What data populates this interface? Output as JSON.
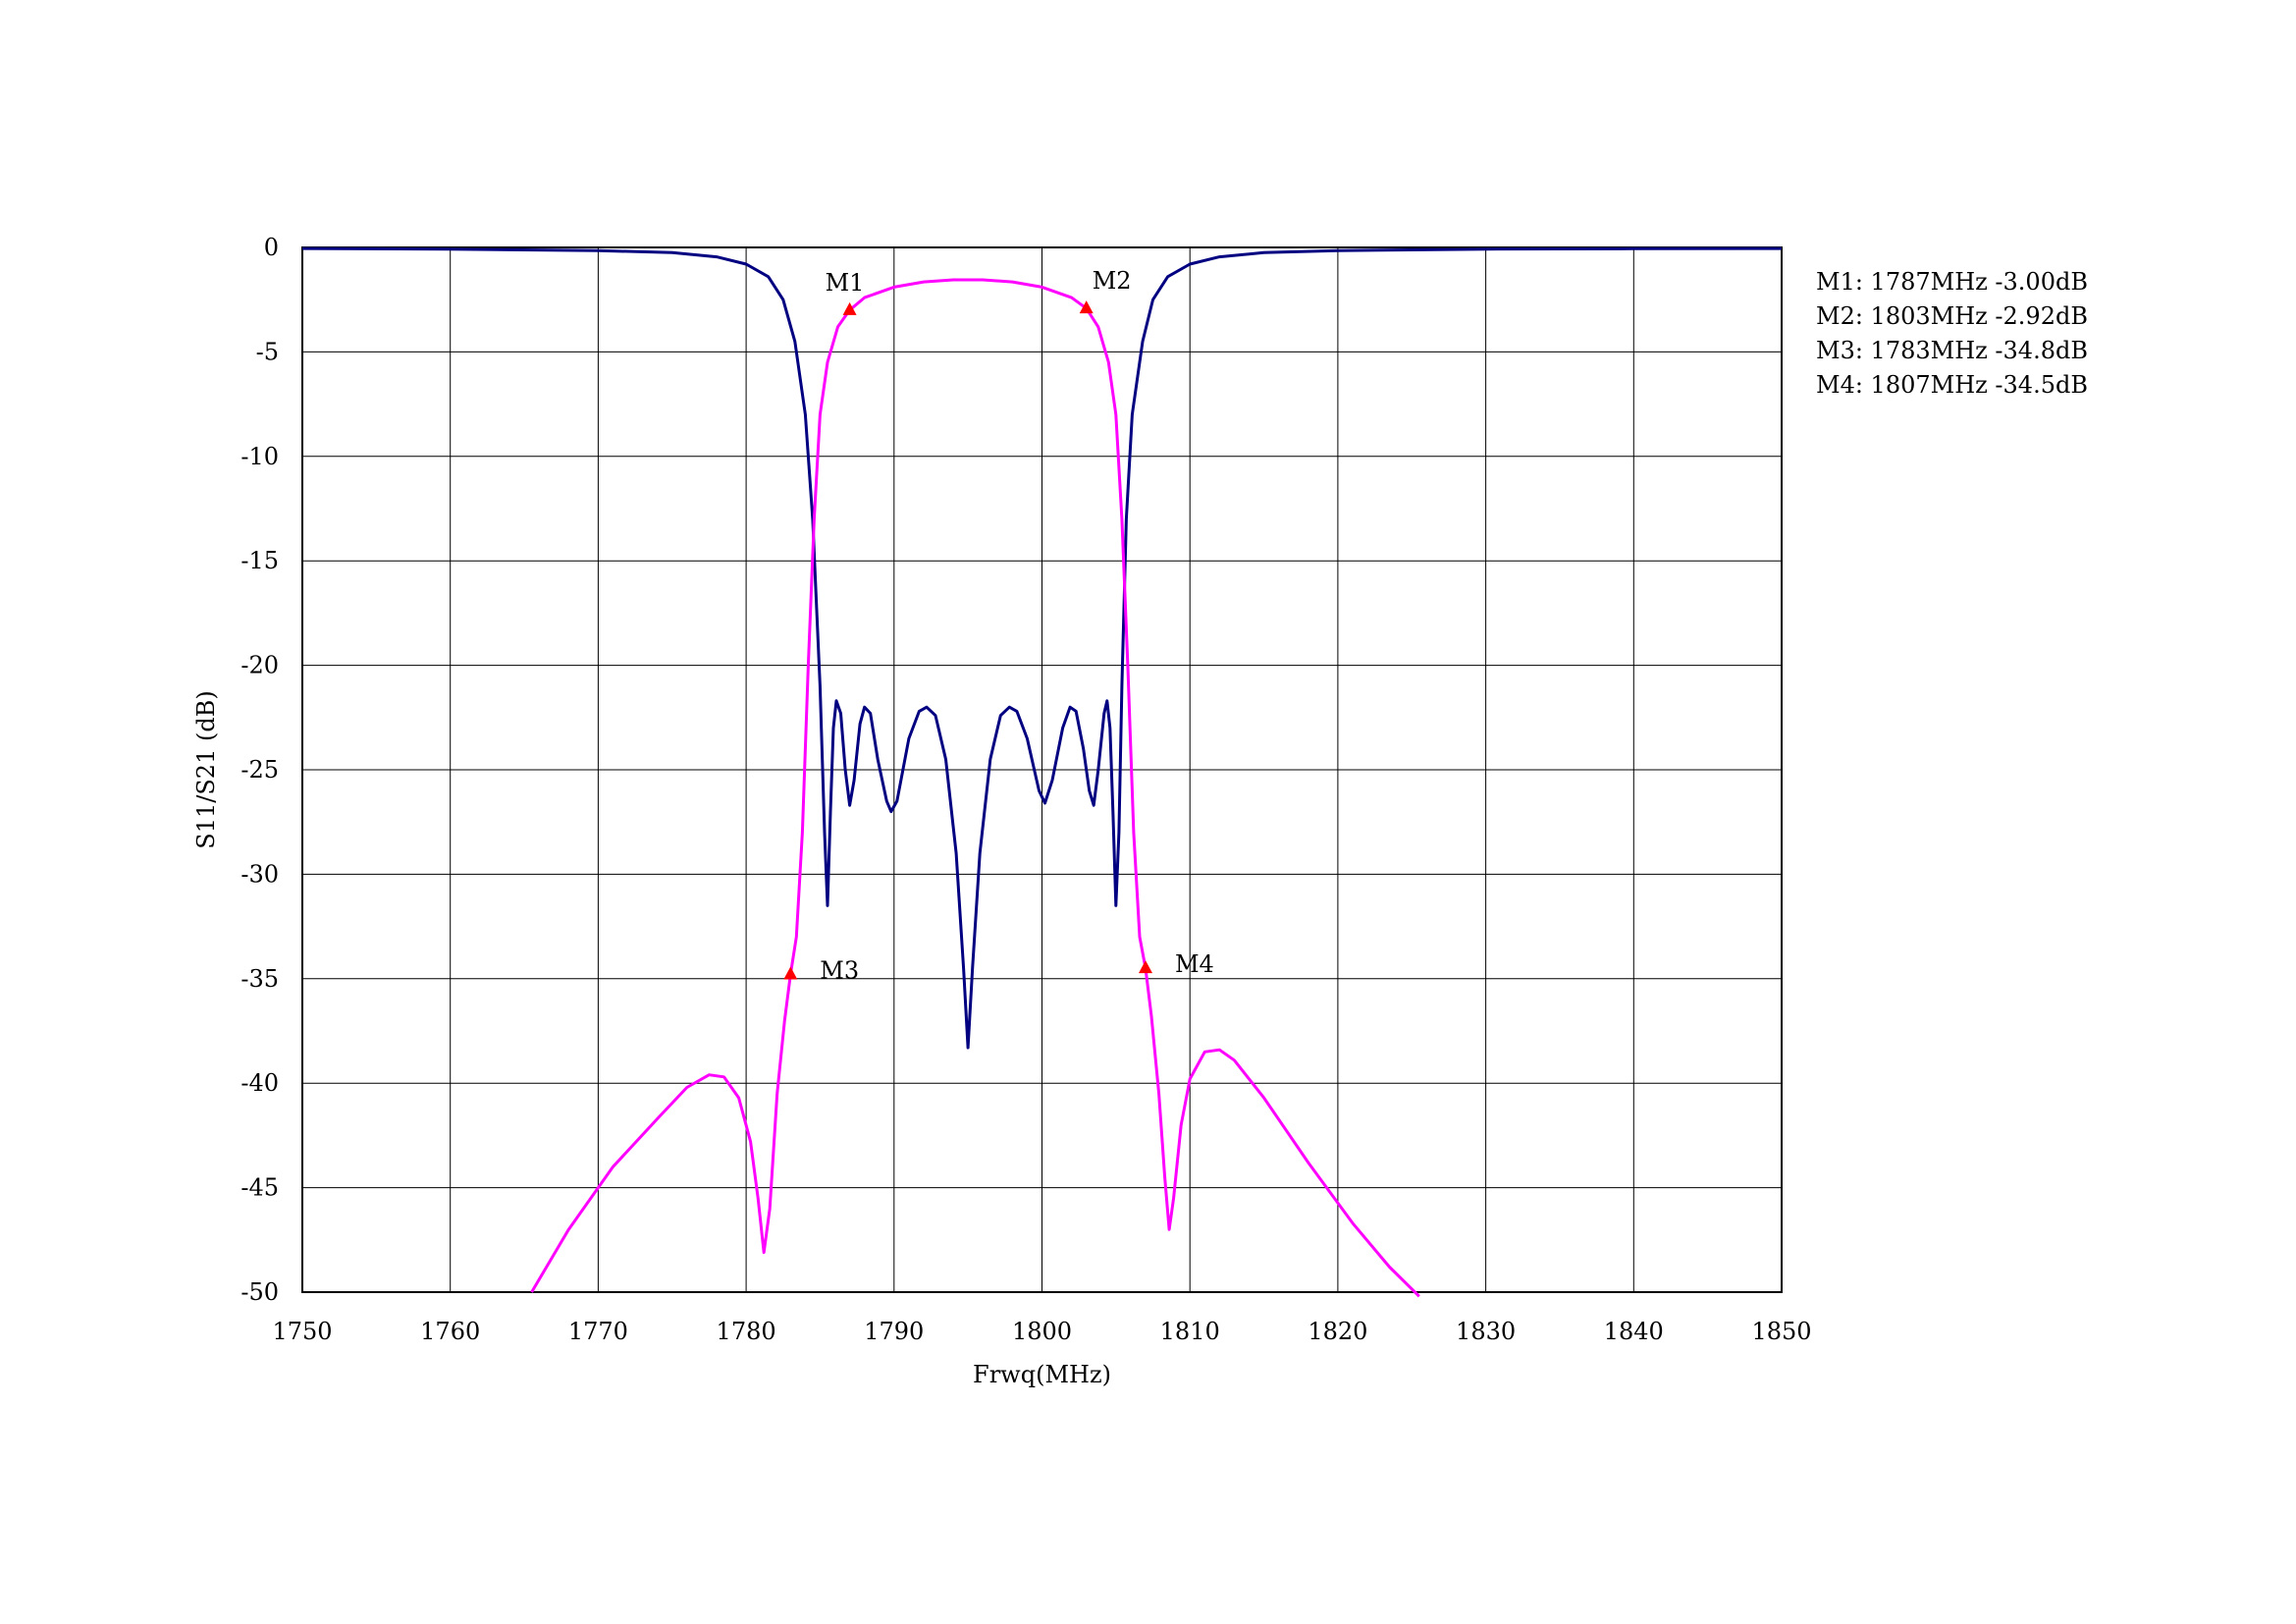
{
  "chart_data": {
    "type": "line",
    "title": "",
    "xlabel": "Frwq(MHz)",
    "ylabel": "S11/S21 (dB)",
    "xlim": [
      1750,
      1850
    ],
    "ylim": [
      -50,
      0
    ],
    "x_ticks": [
      1750,
      1760,
      1770,
      1780,
      1790,
      1800,
      1810,
      1820,
      1830,
      1840,
      1850
    ],
    "y_ticks": [
      0,
      -5,
      -10,
      -15,
      -20,
      -25,
      -30,
      -35,
      -40,
      -45,
      -50
    ],
    "grid": true,
    "series": [
      {
        "color": "#000080",
        "points": [
          [
            1750,
            -0.05
          ],
          [
            1760,
            -0.08
          ],
          [
            1770,
            -0.15
          ],
          [
            1775,
            -0.25
          ],
          [
            1778,
            -0.45
          ],
          [
            1780,
            -0.8
          ],
          [
            1781.5,
            -1.4
          ],
          [
            1782.5,
            -2.5
          ],
          [
            1783.3,
            -4.5
          ],
          [
            1784,
            -8
          ],
          [
            1784.5,
            -13
          ],
          [
            1785,
            -21
          ],
          [
            1785.3,
            -28
          ],
          [
            1785.5,
            -31.5
          ],
          [
            1785.7,
            -27
          ],
          [
            1785.9,
            -23
          ],
          [
            1786.1,
            -21.7
          ],
          [
            1786.4,
            -22.3
          ],
          [
            1786.7,
            -25
          ],
          [
            1787,
            -26.7
          ],
          [
            1787.3,
            -25.5
          ],
          [
            1787.7,
            -22.8
          ],
          [
            1788,
            -22
          ],
          [
            1788.4,
            -22.3
          ],
          [
            1788.9,
            -24.5
          ],
          [
            1789.5,
            -26.5
          ],
          [
            1789.8,
            -27
          ],
          [
            1790.2,
            -26.5
          ],
          [
            1791,
            -23.5
          ],
          [
            1791.7,
            -22.2
          ],
          [
            1792.2,
            -22
          ],
          [
            1792.8,
            -22.4
          ],
          [
            1793.5,
            -24.5
          ],
          [
            1794.2,
            -29
          ],
          [
            1794.7,
            -34.5
          ],
          [
            1795,
            -38.3
          ],
          [
            1795.3,
            -34.5
          ],
          [
            1795.8,
            -29
          ],
          [
            1796.5,
            -24.5
          ],
          [
            1797.2,
            -22.4
          ],
          [
            1797.8,
            -22
          ],
          [
            1798.3,
            -22.2
          ],
          [
            1799,
            -23.5
          ],
          [
            1799.8,
            -26
          ],
          [
            1800.2,
            -26.6
          ],
          [
            1800.7,
            -25.5
          ],
          [
            1801.4,
            -23
          ],
          [
            1801.9,
            -22
          ],
          [
            1802.3,
            -22.2
          ],
          [
            1802.8,
            -24
          ],
          [
            1803.2,
            -26
          ],
          [
            1803.5,
            -26.7
          ],
          [
            1803.8,
            -25
          ],
          [
            1804.2,
            -22.3
          ],
          [
            1804.4,
            -21.7
          ],
          [
            1804.6,
            -23
          ],
          [
            1804.8,
            -27
          ],
          [
            1805,
            -31.5
          ],
          [
            1805.2,
            -28
          ],
          [
            1805.4,
            -21
          ],
          [
            1805.7,
            -13
          ],
          [
            1806.1,
            -8
          ],
          [
            1806.8,
            -4.5
          ],
          [
            1807.5,
            -2.5
          ],
          [
            1808.5,
            -1.4
          ],
          [
            1810,
            -0.8
          ],
          [
            1812,
            -0.45
          ],
          [
            1815,
            -0.25
          ],
          [
            1820,
            -0.15
          ],
          [
            1830,
            -0.08
          ],
          [
            1840,
            -0.06
          ],
          [
            1850,
            -0.05
          ]
        ]
      },
      {
        "color": "#ff00ff",
        "points": [
          [
            1765.5,
            -50
          ],
          [
            1768,
            -47
          ],
          [
            1771,
            -44
          ],
          [
            1774,
            -41.7
          ],
          [
            1776,
            -40.2
          ],
          [
            1777.5,
            -39.6
          ],
          [
            1778.5,
            -39.7
          ],
          [
            1779.5,
            -40.7
          ],
          [
            1780.3,
            -42.8
          ],
          [
            1780.8,
            -45.5
          ],
          [
            1781.2,
            -48.1
          ],
          [
            1781.6,
            -46
          ],
          [
            1782.1,
            -40.5
          ],
          [
            1782.6,
            -37
          ],
          [
            1783,
            -34.8
          ],
          [
            1783.4,
            -33
          ],
          [
            1783.8,
            -28
          ],
          [
            1784.2,
            -20
          ],
          [
            1784.6,
            -13
          ],
          [
            1785,
            -8
          ],
          [
            1785.5,
            -5.5
          ],
          [
            1786.2,
            -3.8
          ],
          [
            1787,
            -3.0
          ],
          [
            1788,
            -2.4
          ],
          [
            1790,
            -1.9
          ],
          [
            1792,
            -1.65
          ],
          [
            1794,
            -1.55
          ],
          [
            1796,
            -1.55
          ],
          [
            1798,
            -1.65
          ],
          [
            1800,
            -1.9
          ],
          [
            1802,
            -2.4
          ],
          [
            1803,
            -2.92
          ],
          [
            1803.8,
            -3.8
          ],
          [
            1804.5,
            -5.5
          ],
          [
            1805,
            -8
          ],
          [
            1805.4,
            -13
          ],
          [
            1805.8,
            -20
          ],
          [
            1806.2,
            -28
          ],
          [
            1806.6,
            -33
          ],
          [
            1807,
            -34.5
          ],
          [
            1807.4,
            -36.8
          ],
          [
            1807.9,
            -40.5
          ],
          [
            1808.3,
            -44.5
          ],
          [
            1808.6,
            -47
          ],
          [
            1808.9,
            -45.5
          ],
          [
            1809.4,
            -42
          ],
          [
            1810,
            -39.8
          ],
          [
            1811,
            -38.5
          ],
          [
            1812,
            -38.4
          ],
          [
            1813,
            -38.9
          ],
          [
            1815,
            -40.7
          ],
          [
            1818,
            -43.8
          ],
          [
            1821,
            -46.7
          ],
          [
            1823.5,
            -48.8
          ],
          [
            1825.5,
            -50.2
          ]
        ]
      }
    ],
    "markers": [
      {
        "label": "M1",
        "x": 1787,
        "y": -3.0,
        "label_pos": "above-left"
      },
      {
        "label": "M2",
        "x": 1803,
        "y": -2.92,
        "label_pos": "above-right"
      },
      {
        "label": "M3",
        "x": 1783,
        "y": -34.8,
        "label_pos": "right"
      },
      {
        "label": "M4",
        "x": 1807,
        "y": -34.5,
        "label_pos": "right"
      }
    ],
    "marker_color": "#ff0000",
    "annotations": [
      "M1: 1787MHz -3.00dB",
      "M2: 1803MHz -2.92dB",
      "M3: 1783MHz -34.8dB",
      "M4: 1807MHz -34.5dB"
    ],
    "annotation_position": "right"
  }
}
